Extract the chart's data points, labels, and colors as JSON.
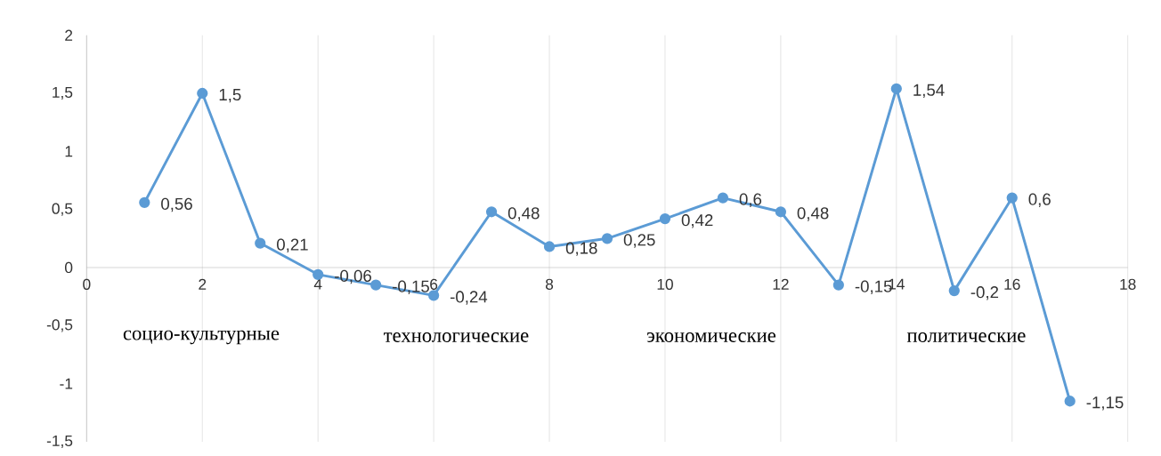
{
  "chart_data": {
    "type": "line",
    "x": [
      1,
      2,
      3,
      4,
      5,
      6,
      7,
      8,
      9,
      10,
      11,
      12,
      13,
      14,
      15,
      16,
      17
    ],
    "series": [
      {
        "color": "#5b9bd5",
        "values": [
          0.56,
          1.5,
          0.21,
          -0.06,
          -0.15,
          -0.24,
          0.48,
          0.18,
          0.25,
          0.42,
          0.6,
          0.48,
          -0.15,
          1.54,
          -0.2,
          0.6,
          -1.15
        ],
        "value_labels": [
          "0,56",
          "1,5",
          "0,21",
          "-0,06",
          "-0,15",
          "-0,24",
          "0,48",
          "0,18",
          "0,25",
          "0,42",
          "0,6",
          "0,48",
          "-0,15",
          "1,54",
          "-0,2",
          "0,6",
          "-1,15"
        ]
      }
    ],
    "xlim": [
      0,
      18
    ],
    "ylim": [
      -1.5,
      2
    ],
    "xticks": [
      0,
      2,
      4,
      6,
      8,
      10,
      12,
      14,
      16,
      18
    ],
    "yticks": [
      {
        "value": -1.5,
        "label": "-1,5"
      },
      {
        "value": -1,
        "label": "-1"
      },
      {
        "value": -0.5,
        "label": "-0,5"
      },
      0,
      {
        "value": 0.5,
        "label": "0,5"
      },
      1,
      {
        "value": 1.5,
        "label": "1,5"
      },
      2
    ],
    "annotations": [
      "социо-культурные",
      "технологические",
      "экономические",
      "политические"
    ],
    "grid": "x",
    "marker": "circle",
    "line_style": "solid"
  }
}
